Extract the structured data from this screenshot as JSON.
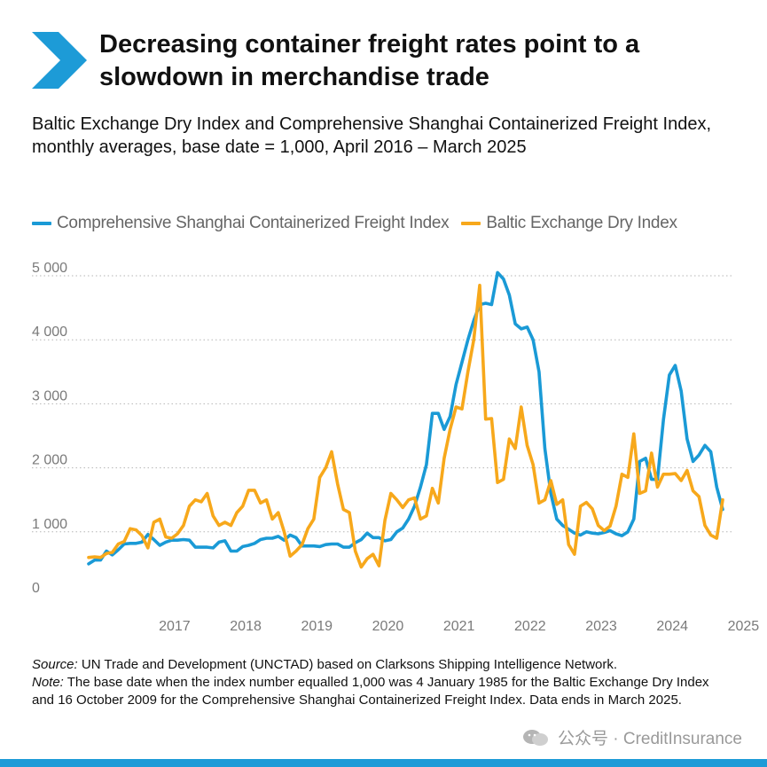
{
  "header": {
    "title": "Decreasing container freight rates point to a slowdown in merchandise trade",
    "subtitle": "Baltic Exchange Dry Index and Comprehensive Shanghai Containerized Freight Index, monthly averages, base date = 1,000, April 2016 – March 2025",
    "icon": "chevron-right-icon"
  },
  "legend": {
    "items": [
      {
        "label": "Comprehensive Shanghai Containerized Freight Index",
        "color": "#1a9ad6"
      },
      {
        "label": "Baltic Exchange Dry Index",
        "color": "#f7a81b"
      }
    ]
  },
  "chart_data": {
    "type": "line",
    "title": "",
    "xlabel": "",
    "ylabel": "",
    "x_start": "2016-04",
    "x_end": "2025-03",
    "x_ticks": [
      "2017",
      "2018",
      "2019",
      "2020",
      "2021",
      "2022",
      "2023",
      "2024",
      "2025"
    ],
    "y_ticks": [
      "0",
      "1 000",
      "2 000",
      "3 000",
      "4 000",
      "5 000"
    ],
    "ylim": [
      0,
      5000
    ],
    "grid": "horizontal dotted",
    "legend_position": "top-left",
    "series": [
      {
        "name": "Comprehensive Shanghai Containerized Freight Index",
        "color": "#1a9ad6",
        "values": [
          500,
          560,
          560,
          700,
          640,
          720,
          810,
          820,
          820,
          840,
          960,
          880,
          790,
          840,
          870,
          870,
          880,
          870,
          760,
          760,
          760,
          750,
          840,
          860,
          700,
          700,
          770,
          790,
          820,
          880,
          900,
          900,
          930,
          870,
          950,
          910,
          780,
          780,
          780,
          770,
          800,
          810,
          810,
          760,
          760,
          830,
          880,
          980,
          910,
          910,
          860,
          880,
          1000,
          1060,
          1200,
          1400,
          1700,
          2050,
          2850,
          2850,
          2600,
          2800,
          3300,
          3650,
          4000,
          4300,
          4550,
          4570,
          4550,
          5050,
          4950,
          4700,
          4250,
          4170,
          4200,
          4000,
          3500,
          2300,
          1600,
          1200,
          1100,
          1040,
          980,
          950,
          1000,
          980,
          970,
          990,
          1020,
          970,
          940,
          1000,
          1200,
          2100,
          2150,
          1820,
          1820,
          2750,
          3450,
          3600,
          3200,
          2450,
          2100,
          2200,
          2350,
          2250,
          1700,
          1350
        ]
      },
      {
        "name": "Baltic Exchange Dry Index",
        "color": "#f7a81b",
        "values": [
          600,
          610,
          600,
          660,
          680,
          810,
          850,
          1050,
          1030,
          940,
          750,
          1150,
          1200,
          920,
          900,
          970,
          1100,
          1400,
          1500,
          1470,
          1600,
          1250,
          1100,
          1150,
          1100,
          1300,
          1400,
          1650,
          1650,
          1450,
          1500,
          1200,
          1300,
          1000,
          620,
          700,
          800,
          1050,
          1200,
          1850,
          2000,
          2250,
          1750,
          1350,
          1300,
          700,
          450,
          580,
          650,
          470,
          1180,
          1600,
          1500,
          1380,
          1500,
          1530,
          1200,
          1250,
          1680,
          1450,
          2150,
          2600,
          2950,
          2920,
          3500,
          4000,
          4850,
          2760,
          2770,
          1770,
          1820,
          2450,
          2300,
          2950,
          2350,
          2050,
          1450,
          1500,
          1800,
          1430,
          1500,
          800,
          650,
          1400,
          1460,
          1360,
          1100,
          1020,
          1090,
          1400,
          1900,
          1850,
          2530,
          1600,
          1640,
          2230,
          1700,
          1900,
          1900,
          1910,
          1800,
          1960,
          1640,
          1550,
          1100,
          950,
          900,
          1500
        ]
      }
    ]
  },
  "notes": {
    "source_label": "Source:",
    "source_text": " UN Trade and Development (UNCTAD) based on Clarksons Shipping Intelligence Network.",
    "note_label": "Note:",
    "note_text": " The base date when the index number equalled 1,000 was 4 January 1985 for the Baltic Exchange Dry Index and 16 October 2009 for the Comprehensive Shanghai Containerized Freight Index. Data ends in March 2025."
  },
  "watermark": {
    "text": "公众号 · CreditInsurance",
    "icon": "wechat-icon"
  },
  "colors": {
    "accent": "#1d9bd7",
    "grid": "#b5b5b5",
    "tick": "#7a7a7a"
  }
}
